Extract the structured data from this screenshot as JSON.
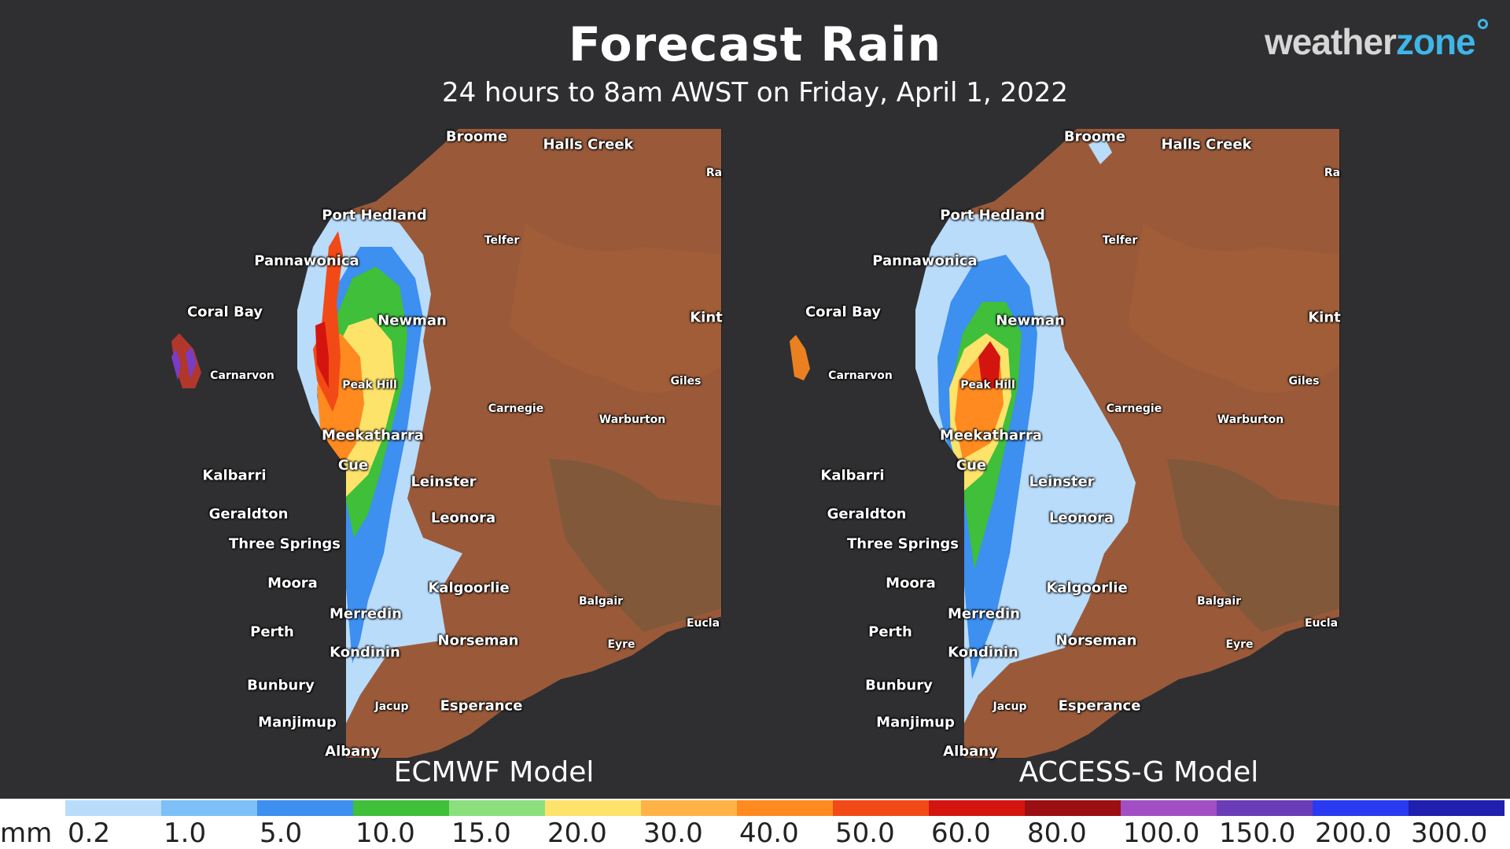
{
  "header": {
    "title": "Forecast Rain",
    "subtitle": "24 hours to 8am AWST on Friday, April 1, 2022"
  },
  "logo": {
    "part1": "weather",
    "part2": "zone"
  },
  "colors": {
    "background": "#2f2f31",
    "land": "#9a5a3a",
    "logo_accent": "#3fb6e8"
  },
  "panels": [
    {
      "model_label": "ECMWF Model",
      "places": [
        {
          "name": "Broome",
          "size": "lg"
        },
        {
          "name": "Halls Creek",
          "size": "lg"
        },
        {
          "name": "Ra",
          "size": "sm"
        },
        {
          "name": "Port Hedland",
          "size": "lg"
        },
        {
          "name": "Telfer",
          "size": "sm"
        },
        {
          "name": "Pannawonica",
          "size": "lg"
        },
        {
          "name": "Coral Bay",
          "size": "lg"
        },
        {
          "name": "Newman",
          "size": "lg"
        },
        {
          "name": "Kint",
          "size": "lg"
        },
        {
          "name": "Carnarvon",
          "size": "sm"
        },
        {
          "name": "Peak Hill",
          "size": "sm"
        },
        {
          "name": "Giles",
          "size": "sm"
        },
        {
          "name": "Carnegie",
          "size": "sm"
        },
        {
          "name": "Warburton",
          "size": "sm"
        },
        {
          "name": "Meekatharra",
          "size": "lg"
        },
        {
          "name": "Cue",
          "size": "lg"
        },
        {
          "name": "Kalbarri",
          "size": "lg"
        },
        {
          "name": "Leinster",
          "size": "lg"
        },
        {
          "name": "Geraldton",
          "size": "lg"
        },
        {
          "name": "Leonora",
          "size": "lg"
        },
        {
          "name": "Three Springs",
          "size": "lg"
        },
        {
          "name": "Moora",
          "size": "lg"
        },
        {
          "name": "Kalgoorlie",
          "size": "lg"
        },
        {
          "name": "Balgair",
          "size": "sm"
        },
        {
          "name": "Merredin",
          "size": "lg"
        },
        {
          "name": "Eucla",
          "size": "sm"
        },
        {
          "name": "Perth",
          "size": "lg"
        },
        {
          "name": "Norseman",
          "size": "lg"
        },
        {
          "name": "Eyre",
          "size": "sm"
        },
        {
          "name": "Kondinin",
          "size": "lg"
        },
        {
          "name": "Bunbury",
          "size": "lg"
        },
        {
          "name": "Jacup",
          "size": "sm"
        },
        {
          "name": "Esperance",
          "size": "lg"
        },
        {
          "name": "Manjimup",
          "size": "lg"
        },
        {
          "name": "Albany",
          "size": "lg"
        }
      ]
    },
    {
      "model_label": "ACCESS-G Model",
      "places": [
        {
          "name": "Broome",
          "size": "lg"
        },
        {
          "name": "Halls Creek",
          "size": "lg"
        },
        {
          "name": "Ra",
          "size": "sm"
        },
        {
          "name": "Port Hedland",
          "size": "lg"
        },
        {
          "name": "Telfer",
          "size": "sm"
        },
        {
          "name": "Pannawonica",
          "size": "lg"
        },
        {
          "name": "Coral Bay",
          "size": "lg"
        },
        {
          "name": "Newman",
          "size": "lg"
        },
        {
          "name": "Kint",
          "size": "lg"
        },
        {
          "name": "Carnarvon",
          "size": "sm"
        },
        {
          "name": "Peak Hill",
          "size": "sm"
        },
        {
          "name": "Giles",
          "size": "sm"
        },
        {
          "name": "Carnegie",
          "size": "sm"
        },
        {
          "name": "Warburton",
          "size": "sm"
        },
        {
          "name": "Meekatharra",
          "size": "lg"
        },
        {
          "name": "Cue",
          "size": "lg"
        },
        {
          "name": "Kalbarri",
          "size": "lg"
        },
        {
          "name": "Leinster",
          "size": "lg"
        },
        {
          "name": "Geraldton",
          "size": "lg"
        },
        {
          "name": "Leonora",
          "size": "lg"
        },
        {
          "name": "Three Springs",
          "size": "lg"
        },
        {
          "name": "Moora",
          "size": "lg"
        },
        {
          "name": "Kalgoorlie",
          "size": "lg"
        },
        {
          "name": "Balgair",
          "size": "sm"
        },
        {
          "name": "Merredin",
          "size": "lg"
        },
        {
          "name": "Eucla",
          "size": "sm"
        },
        {
          "name": "Perth",
          "size": "lg"
        },
        {
          "name": "Norseman",
          "size": "lg"
        },
        {
          "name": "Eyre",
          "size": "sm"
        },
        {
          "name": "Kondinin",
          "size": "lg"
        },
        {
          "name": "Bunbury",
          "size": "lg"
        },
        {
          "name": "Jacup",
          "size": "sm"
        },
        {
          "name": "Esperance",
          "size": "lg"
        },
        {
          "name": "Manjimup",
          "size": "lg"
        },
        {
          "name": "Albany",
          "size": "lg"
        }
      ]
    }
  ],
  "legend": {
    "unit": "mm",
    "ticks": [
      "0.2",
      "1.0",
      "5.0",
      "10.0",
      "15.0",
      "20.0",
      "30.0",
      "40.0",
      "50.0",
      "60.0",
      "80.0",
      "100.0",
      "150.0",
      "200.0",
      "300.0"
    ],
    "colors": [
      "#b9dcfb",
      "#7cc0f7",
      "#3d8ff0",
      "#3fbf3a",
      "#8be07d",
      "#fde36a",
      "#ffb347",
      "#ff8a1f",
      "#f24a17",
      "#d4150f",
      "#9b0f12",
      "#a24fc4",
      "#6b3cb7",
      "#2a3af0",
      "#1f1fb0"
    ]
  }
}
